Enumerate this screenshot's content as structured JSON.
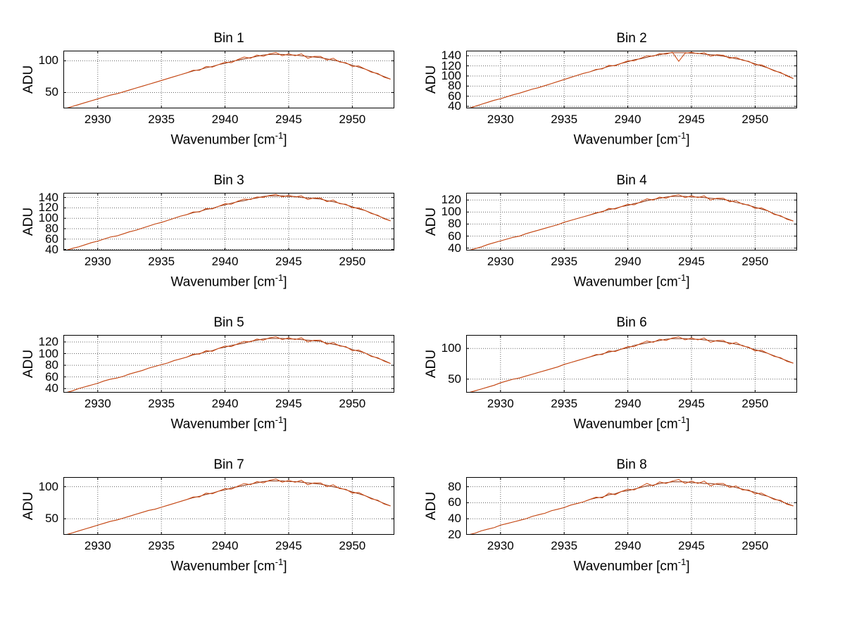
{
  "colors": {
    "background": "#ffffff",
    "axis": "#000000",
    "grid": "#666666",
    "text": "#000000",
    "line_main": "#cc4a14",
    "line_under": "#8c2e0a"
  },
  "chart_data": {
    "type": "line",
    "layout": {
      "rows": 4,
      "cols": 2,
      "grid": "dotted",
      "box": true
    },
    "axis_labels": {
      "x_pre": "Wavenumber [cm",
      "x_sup": "-1",
      "x_post": "]",
      "y": "ADU"
    },
    "x_start": 2927.5,
    "x_step": 0.5,
    "xlim": [
      2927.3,
      2953.3
    ],
    "xticks": [
      2930,
      2935,
      2940,
      2945,
      2950
    ],
    "bins": [
      {
        "title": "Bin 1",
        "yticks": [
          50,
          100
        ],
        "ylim": [
          25,
          116
        ],
        "smooth": [
          25,
          28,
          31,
          34,
          37,
          40,
          43,
          46,
          48,
          51,
          54,
          57,
          60,
          63,
          66,
          69,
          72,
          75,
          78,
          81,
          84,
          86,
          89,
          91,
          94,
          96,
          99,
          101,
          103,
          105,
          107,
          109,
          110,
          110,
          110,
          109,
          109,
          108,
          107,
          106,
          105,
          103,
          101,
          99,
          96,
          93,
          90,
          87,
          83,
          79,
          75,
          71
        ],
        "noisy": [
          25,
          28,
          31,
          34,
          37,
          40,
          43,
          46,
          48,
          51,
          54,
          57,
          60,
          63,
          66,
          69,
          72,
          75,
          78,
          81,
          85,
          85,
          91,
          90,
          94,
          98,
          97,
          102,
          106,
          104,
          109,
          107,
          111,
          113,
          108,
          111,
          108,
          111,
          104,
          107,
          107,
          101,
          104,
          98,
          97,
          91,
          92,
          87,
          82,
          80,
          74,
          71
        ]
      },
      {
        "title": "Bin 2",
        "yticks": [
          40,
          60,
          80,
          100,
          120,
          140
        ],
        "ylim": [
          36,
          150
        ],
        "smooth": [
          36,
          40,
          44,
          48,
          52,
          55,
          59,
          63,
          66,
          70,
          74,
          77,
          81,
          85,
          89,
          93,
          97,
          101,
          105,
          108,
          112,
          115,
          119,
          121,
          125,
          128,
          132,
          134,
          137,
          140,
          142,
          145,
          146,
          146,
          146,
          145,
          145,
          143,
          142,
          141,
          139,
          137,
          134,
          132,
          128,
          124,
          120,
          116,
          111,
          106,
          101,
          95
        ],
        "noisy": [
          36,
          40,
          44,
          48,
          52,
          55,
          59,
          63,
          66,
          70,
          74,
          77,
          81,
          85,
          89,
          93,
          97,
          101,
          105,
          108,
          113,
          114,
          121,
          120,
          125,
          130,
          130,
          135,
          140,
          139,
          144,
          143,
          147,
          129,
          145,
          147,
          144,
          146,
          139,
          142,
          141,
          135,
          137,
          131,
          129,
          122,
          122,
          116,
          110,
          107,
          100,
          95
        ]
      },
      {
        "title": "Bin 3",
        "yticks": [
          40,
          60,
          80,
          100,
          120,
          140
        ],
        "ylim": [
          38,
          149
        ],
        "smooth": [
          38,
          42,
          45,
          49,
          53,
          56,
          60,
          64,
          66,
          70,
          74,
          77,
          81,
          85,
          89,
          92,
          96,
          100,
          104,
          107,
          111,
          113,
          117,
          119,
          123,
          126,
          129,
          132,
          134,
          137,
          139,
          142,
          143,
          143,
          143,
          142,
          142,
          140,
          139,
          138,
          137,
          134,
          132,
          129,
          126,
          122,
          118,
          115,
          110,
          105,
          100,
          95
        ],
        "noisy": [
          38,
          42,
          45,
          49,
          53,
          56,
          60,
          64,
          66,
          70,
          74,
          77,
          81,
          85,
          89,
          92,
          96,
          100,
          104,
          107,
          112,
          112,
          119,
          118,
          123,
          128,
          127,
          133,
          137,
          136,
          141,
          140,
          144,
          146,
          141,
          144,
          141,
          143,
          136,
          139,
          139,
          132,
          135,
          128,
          127,
          120,
          120,
          115,
          109,
          106,
          99,
          95
        ]
      },
      {
        "title": "Bin 4",
        "yticks": [
          40,
          60,
          80,
          100,
          120
        ],
        "ylim": [
          36,
          132
        ],
        "smooth": [
          36,
          39,
          42,
          46,
          49,
          52,
          55,
          58,
          60,
          64,
          67,
          70,
          73,
          76,
          79,
          83,
          86,
          89,
          92,
          95,
          98,
          101,
          104,
          106,
          109,
          111,
          114,
          116,
          119,
          121,
          123,
          125,
          126,
          126,
          126,
          125,
          125,
          124,
          123,
          122,
          121,
          119,
          116,
          114,
          111,
          108,
          105,
          102,
          97,
          93,
          89,
          85
        ],
        "noisy": [
          36,
          39,
          42,
          46,
          49,
          52,
          55,
          58,
          60,
          64,
          67,
          70,
          73,
          76,
          79,
          83,
          86,
          89,
          92,
          95,
          99,
          100,
          106,
          105,
          109,
          113,
          112,
          117,
          122,
          120,
          125,
          123,
          127,
          129,
          124,
          127,
          124,
          127,
          120,
          123,
          123,
          117,
          119,
          113,
          112,
          106,
          107,
          102,
          96,
          94,
          88,
          85
        ]
      },
      {
        "title": "Bin 5",
        "yticks": [
          40,
          60,
          80,
          100,
          120
        ],
        "ylim": [
          33,
          132
        ],
        "smooth": [
          33,
          36,
          40,
          43,
          46,
          49,
          53,
          56,
          58,
          61,
          65,
          68,
          71,
          75,
          78,
          81,
          84,
          88,
          91,
          94,
          98,
          100,
          103,
          105,
          109,
          111,
          114,
          116,
          118,
          121,
          123,
          125,
          126,
          126,
          126,
          125,
          125,
          124,
          123,
          122,
          121,
          118,
          116,
          114,
          111,
          107,
          104,
          101,
          96,
          92,
          88,
          83
        ],
        "noisy": [
          33,
          36,
          40,
          43,
          46,
          49,
          53,
          56,
          58,
          61,
          65,
          68,
          71,
          75,
          78,
          81,
          84,
          88,
          91,
          94,
          99,
          99,
          105,
          104,
          109,
          113,
          112,
          117,
          121,
          120,
          125,
          123,
          127,
          129,
          124,
          127,
          124,
          127,
          120,
          123,
          123,
          116,
          119,
          113,
          112,
          105,
          106,
          101,
          95,
          93,
          87,
          83
        ]
      },
      {
        "title": "Bin 6",
        "yticks": [
          50,
          100
        ],
        "ylim": [
          28,
          122
        ],
        "smooth": [
          28,
          31,
          34,
          37,
          40,
          44,
          47,
          50,
          52,
          55,
          58,
          61,
          64,
          67,
          70,
          74,
          77,
          80,
          83,
          86,
          89,
          91,
          94,
          96,
          99,
          101,
          105,
          107,
          109,
          111,
          113,
          115,
          116,
          116,
          116,
          115,
          115,
          114,
          113,
          112,
          111,
          109,
          107,
          105,
          101,
          98,
          95,
          92,
          88,
          84,
          80,
          76
        ],
        "noisy": [
          28,
          31,
          34,
          37,
          40,
          44,
          47,
          50,
          52,
          55,
          58,
          61,
          64,
          67,
          70,
          74,
          77,
          80,
          83,
          86,
          90,
          90,
          96,
          95,
          99,
          103,
          103,
          108,
          112,
          110,
          115,
          113,
          117,
          119,
          114,
          117,
          114,
          117,
          110,
          113,
          113,
          107,
          110,
          104,
          102,
          96,
          97,
          92,
          87,
          85,
          79,
          76
        ]
      },
      {
        "title": "Bin 7",
        "yticks": [
          50,
          100
        ],
        "ylim": [
          25,
          115
        ],
        "smooth": [
          25,
          28,
          31,
          34,
          37,
          40,
          43,
          46,
          48,
          51,
          54,
          57,
          60,
          63,
          65,
          68,
          71,
          74,
          77,
          80,
          83,
          85,
          88,
          90,
          93,
          95,
          98,
          100,
          102,
          104,
          106,
          108,
          109,
          109,
          109,
          108,
          108,
          107,
          106,
          105,
          104,
          102,
          100,
          98,
          95,
          92,
          89,
          86,
          82,
          78,
          74,
          70
        ],
        "noisy": [
          25,
          28,
          31,
          34,
          37,
          40,
          43,
          46,
          48,
          51,
          54,
          57,
          60,
          63,
          65,
          68,
          71,
          74,
          77,
          80,
          84,
          84,
          90,
          89,
          93,
          97,
          96,
          101,
          105,
          103,
          108,
          106,
          110,
          112,
          107,
          110,
          107,
          110,
          103,
          106,
          106,
          100,
          103,
          97,
          96,
          90,
          91,
          86,
          81,
          79,
          73,
          70
        ]
      },
      {
        "title": "Bin 8",
        "yticks": [
          20,
          40,
          60,
          80
        ],
        "ylim": [
          20,
          92
        ],
        "smooth": [
          20,
          22,
          25,
          27,
          29,
          32,
          34,
          36,
          38,
          40,
          43,
          45,
          47,
          50,
          52,
          54,
          57,
          59,
          61,
          64,
          66,
          67,
          70,
          71,
          74,
          75,
          77,
          79,
          81,
          82,
          84,
          85,
          86,
          86,
          86,
          85,
          85,
          84,
          84,
          83,
          82,
          81,
          79,
          77,
          75,
          73,
          70,
          68,
          65,
          62,
          59,
          56
        ],
        "noisy": [
          20,
          22,
          25,
          27,
          29,
          32,
          34,
          36,
          38,
          40,
          43,
          45,
          47,
          50,
          52,
          54,
          57,
          59,
          61,
          64,
          67,
          66,
          72,
          70,
          74,
          77,
          76,
          80,
          84,
          81,
          86,
          84,
          87,
          89,
          84,
          87,
          84,
          87,
          81,
          84,
          84,
          79,
          81,
          76,
          76,
          71,
          72,
          68,
          64,
          63,
          58,
          56
        ]
      }
    ]
  }
}
